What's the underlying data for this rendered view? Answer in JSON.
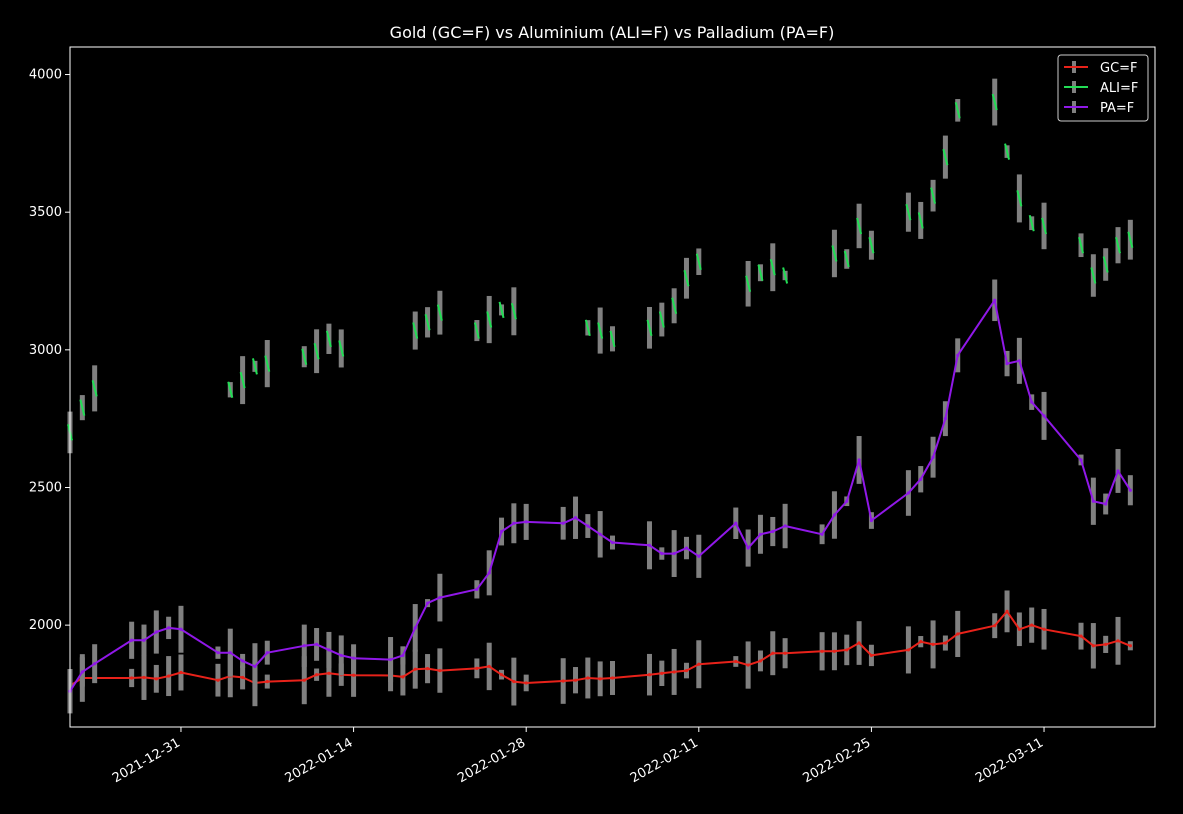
{
  "chart_data": {
    "type": "line",
    "title": "Gold (GC=F) vs Aluminium (ALI=F) vs Palladium (PA=F)",
    "xlabel": "",
    "ylabel": "",
    "x_range": [
      "2021-12-22",
      "2022-03-20"
    ],
    "ylim": [
      1630,
      4100
    ],
    "x_ticks": [
      "2021-12-31",
      "2022-01-14",
      "2022-01-28",
      "2022-02-11",
      "2022-02-25",
      "2022-03-11"
    ],
    "y_ticks": [
      2000,
      2500,
      3000,
      3500,
      4000
    ],
    "grid": false,
    "legend_position": "top-right",
    "series": [
      {
        "name": "GC=F",
        "color": "#e8221a",
        "style": "line",
        "points": [
          [
            "2021-12-22",
            1780
          ],
          [
            "2021-12-23",
            1808
          ],
          [
            "2021-12-27",
            1808
          ],
          [
            "2021-12-28",
            1810
          ],
          [
            "2021-12-29",
            1805
          ],
          [
            "2021-12-30",
            1815
          ],
          [
            "2021-12-31",
            1828
          ],
          [
            "2022-01-03",
            1800
          ],
          [
            "2022-01-04",
            1815
          ],
          [
            "2022-01-05",
            1810
          ],
          [
            "2022-01-06",
            1790
          ],
          [
            "2022-01-07",
            1795
          ],
          [
            "2022-01-10",
            1800
          ],
          [
            "2022-01-11",
            1820
          ],
          [
            "2022-01-12",
            1825
          ],
          [
            "2022-01-13",
            1820
          ],
          [
            "2022-01-14",
            1818
          ],
          [
            "2022-01-17",
            1817
          ],
          [
            "2022-01-18",
            1812
          ],
          [
            "2022-01-19",
            1840
          ],
          [
            "2022-01-20",
            1842
          ],
          [
            "2022-01-21",
            1835
          ],
          [
            "2022-01-24",
            1843
          ],
          [
            "2022-01-25",
            1850
          ],
          [
            "2022-01-26",
            1820
          ],
          [
            "2022-01-27",
            1795
          ],
          [
            "2022-01-28",
            1790
          ],
          [
            "2022-01-31",
            1797
          ],
          [
            "2022-02-01",
            1800
          ],
          [
            "2022-02-02",
            1808
          ],
          [
            "2022-02-03",
            1805
          ],
          [
            "2022-02-04",
            1808
          ],
          [
            "2022-02-07",
            1820
          ],
          [
            "2022-02-08",
            1825
          ],
          [
            "2022-02-09",
            1830
          ],
          [
            "2022-02-10",
            1835
          ],
          [
            "2022-02-11",
            1858
          ],
          [
            "2022-02-14",
            1868
          ],
          [
            "2022-02-15",
            1855
          ],
          [
            "2022-02-16",
            1870
          ],
          [
            "2022-02-17",
            1898
          ],
          [
            "2022-02-18",
            1898
          ],
          [
            "2022-02-21",
            1905
          ],
          [
            "2022-02-22",
            1905
          ],
          [
            "2022-02-23",
            1910
          ],
          [
            "2022-02-24",
            1935
          ],
          [
            "2022-02-25",
            1890
          ],
          [
            "2022-02-28",
            1910
          ],
          [
            "2022-03-01",
            1940
          ],
          [
            "2022-03-02",
            1930
          ],
          [
            "2022-03-03",
            1935
          ],
          [
            "2022-03-04",
            1968
          ],
          [
            "2022-03-07",
            1998
          ],
          [
            "2022-03-08",
            2050
          ],
          [
            "2022-03-09",
            1985
          ],
          [
            "2022-03-10",
            2000
          ],
          [
            "2022-03-11",
            1985
          ],
          [
            "2022-03-14",
            1960
          ],
          [
            "2022-03-15",
            1925
          ],
          [
            "2022-03-16",
            1930
          ],
          [
            "2022-03-17",
            1943
          ],
          [
            "2022-03-18",
            1925
          ]
        ]
      },
      {
        "name": "ALI=F",
        "color": "#22dd55",
        "style": "segments",
        "points": [
          [
            "2021-12-22",
            2700
          ],
          [
            "2021-12-23",
            2790
          ],
          [
            "2021-12-24",
            2860
          ],
          [
            "2022-01-04",
            2855
          ],
          [
            "2022-01-05",
            2890
          ],
          [
            "2022-01-06",
            2940
          ],
          [
            "2022-01-07",
            2950
          ],
          [
            "2022-01-10",
            2975
          ],
          [
            "2022-01-11",
            2995
          ],
          [
            "2022-01-12",
            3040
          ],
          [
            "2022-01-13",
            3005
          ],
          [
            "2022-01-19",
            3070
          ],
          [
            "2022-01-20",
            3100
          ],
          [
            "2022-01-21",
            3135
          ],
          [
            "2022-01-24",
            3070
          ],
          [
            "2022-01-25",
            3110
          ],
          [
            "2022-01-26",
            3145
          ],
          [
            "2022-01-27",
            3140
          ],
          [
            "2022-02-02",
            3080
          ],
          [
            "2022-02-03",
            3070
          ],
          [
            "2022-02-04",
            3040
          ],
          [
            "2022-02-07",
            3080
          ],
          [
            "2022-02-08",
            3110
          ],
          [
            "2022-02-09",
            3160
          ],
          [
            "2022-02-10",
            3260
          ],
          [
            "2022-02-11",
            3320
          ],
          [
            "2022-02-15",
            3240
          ],
          [
            "2022-02-16",
            3280
          ],
          [
            "2022-02-17",
            3300
          ],
          [
            "2022-02-18",
            3270
          ],
          [
            "2022-02-22",
            3350
          ],
          [
            "2022-02-23",
            3330
          ],
          [
            "2022-02-24",
            3450
          ],
          [
            "2022-02-25",
            3380
          ],
          [
            "2022-02-28",
            3500
          ],
          [
            "2022-03-01",
            3470
          ],
          [
            "2022-03-02",
            3560
          ],
          [
            "2022-03-03",
            3700
          ],
          [
            "2022-03-04",
            3870
          ],
          [
            "2022-03-07",
            3900
          ],
          [
            "2022-03-08",
            3720
          ],
          [
            "2022-03-09",
            3550
          ],
          [
            "2022-03-10",
            3460
          ],
          [
            "2022-03-11",
            3450
          ],
          [
            "2022-03-14",
            3380
          ],
          [
            "2022-03-15",
            3270
          ],
          [
            "2022-03-16",
            3310
          ],
          [
            "2022-03-17",
            3380
          ],
          [
            "2022-03-18",
            3400
          ]
        ]
      },
      {
        "name": "PA=F",
        "color": "#9018e8",
        "style": "line",
        "points": [
          [
            "2021-12-22",
            1760
          ],
          [
            "2021-12-23",
            1830
          ],
          [
            "2021-12-24",
            1860
          ],
          [
            "2021-12-27",
            1945
          ],
          [
            "2021-12-28",
            1945
          ],
          [
            "2021-12-29",
            1975
          ],
          [
            "2021-12-30",
            1990
          ],
          [
            "2021-12-31",
            1985
          ],
          [
            "2022-01-03",
            1900
          ],
          [
            "2022-01-04",
            1900
          ],
          [
            "2022-01-05",
            1870
          ],
          [
            "2022-01-06",
            1850
          ],
          [
            "2022-01-07",
            1900
          ],
          [
            "2022-01-10",
            1925
          ],
          [
            "2022-01-11",
            1930
          ],
          [
            "2022-01-12",
            1910
          ],
          [
            "2022-01-13",
            1890
          ],
          [
            "2022-01-14",
            1880
          ],
          [
            "2022-01-17",
            1875
          ],
          [
            "2022-01-18",
            1890
          ],
          [
            "2022-01-19",
            1990
          ],
          [
            "2022-01-20",
            2080
          ],
          [
            "2022-01-21",
            2100
          ],
          [
            "2022-01-24",
            2130
          ],
          [
            "2022-01-25",
            2190
          ],
          [
            "2022-01-26",
            2340
          ],
          [
            "2022-01-27",
            2370
          ],
          [
            "2022-01-28",
            2375
          ],
          [
            "2022-01-31",
            2370
          ],
          [
            "2022-02-01",
            2390
          ],
          [
            "2022-02-02",
            2360
          ],
          [
            "2022-02-03",
            2330
          ],
          [
            "2022-02-04",
            2300
          ],
          [
            "2022-02-07",
            2290
          ],
          [
            "2022-02-08",
            2260
          ],
          [
            "2022-02-09",
            2260
          ],
          [
            "2022-02-10",
            2280
          ],
          [
            "2022-02-11",
            2250
          ],
          [
            "2022-02-14",
            2370
          ],
          [
            "2022-02-15",
            2280
          ],
          [
            "2022-02-16",
            2330
          ],
          [
            "2022-02-17",
            2340
          ],
          [
            "2022-02-18",
            2360
          ],
          [
            "2022-02-21",
            2330
          ],
          [
            "2022-02-22",
            2400
          ],
          [
            "2022-02-23",
            2450
          ],
          [
            "2022-02-24",
            2600
          ],
          [
            "2022-02-25",
            2380
          ],
          [
            "2022-02-28",
            2480
          ],
          [
            "2022-03-01",
            2530
          ],
          [
            "2022-03-02",
            2610
          ],
          [
            "2022-03-03",
            2750
          ],
          [
            "2022-03-04",
            2980
          ],
          [
            "2022-03-07",
            3180
          ],
          [
            "2022-03-08",
            2950
          ],
          [
            "2022-03-09",
            2960
          ],
          [
            "2022-03-10",
            2810
          ],
          [
            "2022-03-11",
            2760
          ],
          [
            "2022-03-14",
            2600
          ],
          [
            "2022-03-15",
            2450
          ],
          [
            "2022-03-16",
            2440
          ],
          [
            "2022-03-17",
            2560
          ],
          [
            "2022-03-18",
            2490
          ]
        ]
      }
    ]
  }
}
